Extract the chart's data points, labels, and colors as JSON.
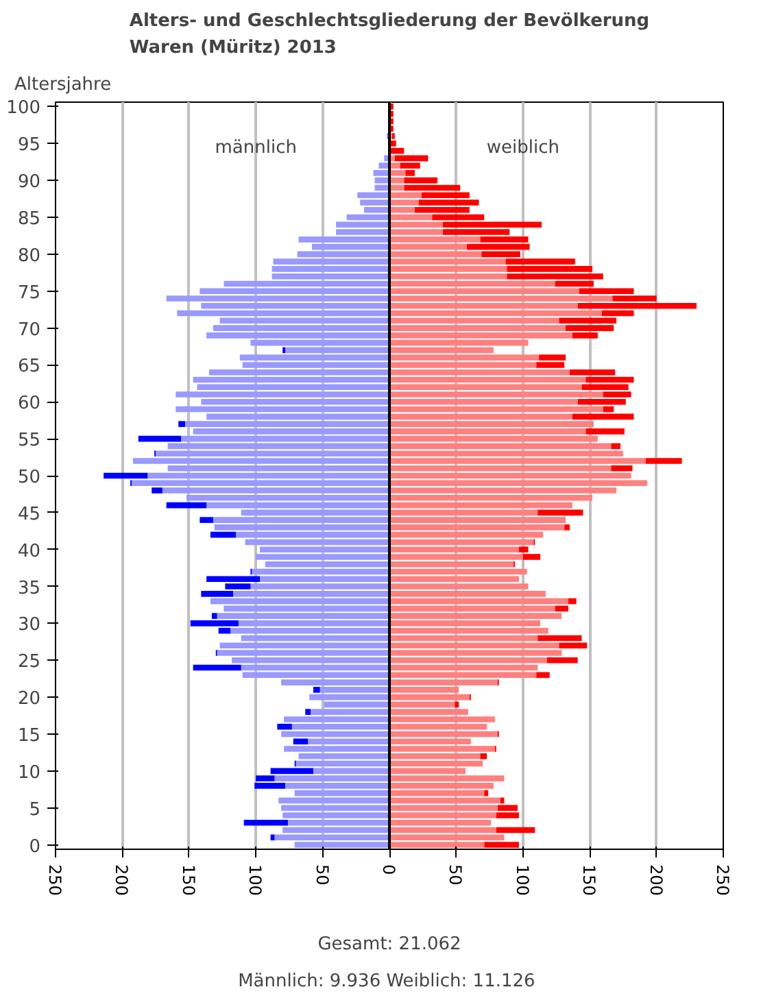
{
  "chart_data": {
    "type": "bar",
    "orientation": "horizontal",
    "stacked": true,
    "title": "Alters- und Geschlechtsgliederung der Bevölkerung\nWaren (Müritz) 2013",
    "ylabel": "Altersjahre",
    "categories": [
      "100",
      null,
      null,
      null,
      null,
      "95",
      null,
      null,
      null,
      null,
      "90",
      null,
      null,
      null,
      null,
      "85",
      null,
      null,
      null,
      null,
      "80",
      null,
      null,
      null,
      null,
      "75",
      null,
      null,
      null,
      null,
      "70",
      null,
      null,
      null,
      null,
      "65",
      null,
      null,
      null,
      null,
      "60",
      null,
      null,
      null,
      null,
      "55",
      null,
      null,
      null,
      null,
      "50",
      null,
      null,
      null,
      null,
      "45",
      null,
      null,
      null,
      null,
      "40",
      null,
      null,
      null,
      null,
      "35",
      null,
      null,
      null,
      null,
      "30",
      null,
      null,
      null,
      null,
      "25",
      null,
      null,
      null,
      null,
      "20",
      null,
      null,
      null,
      null,
      "15",
      null,
      null,
      null,
      null,
      "10",
      null,
      null,
      null,
      null,
      "5",
      null,
      null,
      null,
      null,
      "0"
    ],
    "series": [
      {
        "color": "#9999ff",
        "values": [
          null,
          null,
          null,
          null,
          -2,
          null,
          null,
          -4,
          -8,
          -12,
          -11,
          -11,
          -24,
          -22,
          -19,
          -32,
          -40,
          -40,
          -68,
          -58,
          -69,
          -87,
          -88,
          -88,
          -124,
          -142,
          -167,
          -141,
          -159,
          -127,
          -132,
          -137,
          -104,
          -78,
          -112,
          -110,
          -135,
          -147,
          -144,
          -160,
          -141,
          -160,
          -137,
          -153,
          -147,
          -156,
          -166,
          -175,
          -192,
          -166,
          -181,
          -193,
          -170,
          -152,
          -137,
          -111,
          -132,
          -131,
          -115,
          -108,
          -97,
          -100,
          -93,
          -103,
          -97,
          -104,
          -117,
          -134,
          -124,
          -129,
          -113,
          -119,
          -111,
          -127,
          -129,
          -118,
          -111,
          -110,
          -81,
          -52,
          -60,
          -49,
          -59,
          -79,
          -73,
          -81,
          -61,
          -79,
          -68,
          -70,
          -57,
          -86,
          -78,
          -71,
          -83,
          -81,
          -80,
          -76,
          -80,
          -86,
          -71
        ]
      },
      {
        "color": "#0000ff",
        "values": [
          null,
          null,
          null,
          null,
          null,
          null,
          null,
          null,
          null,
          null,
          null,
          null,
          null,
          null,
          null,
          null,
          null,
          null,
          null,
          null,
          null,
          null,
          null,
          null,
          null,
          null,
          null,
          null,
          null,
          null,
          null,
          null,
          null,
          -2,
          null,
          null,
          null,
          null,
          null,
          null,
          null,
          null,
          null,
          -5,
          null,
          -32,
          null,
          -1,
          null,
          null,
          -33,
          -1,
          -8,
          null,
          -30,
          null,
          -10,
          null,
          -19,
          null,
          null,
          null,
          null,
          -1,
          -40,
          -19,
          -24,
          null,
          null,
          -4,
          -36,
          -9,
          null,
          null,
          -1,
          null,
          -36,
          null,
          null,
          -5,
          null,
          null,
          -4,
          null,
          -11,
          null,
          -11,
          null,
          null,
          -1,
          -32,
          -14,
          -23,
          null,
          null,
          null,
          null,
          -33,
          null,
          -3,
          null
        ]
      },
      {
        "color": "#ff8080",
        "values": [
          null,
          null,
          null,
          null,
          2,
          null,
          null,
          4,
          8,
          12,
          11,
          11,
          24,
          22,
          19,
          32,
          40,
          40,
          68,
          58,
          69,
          87,
          88,
          88,
          124,
          142,
          167,
          141,
          159,
          127,
          132,
          137,
          104,
          78,
          112,
          110,
          135,
          147,
          144,
          160,
          141,
          160,
          137,
          153,
          147,
          156,
          166,
          175,
          192,
          166,
          181,
          193,
          170,
          152,
          137,
          111,
          132,
          131,
          115,
          108,
          97,
          100,
          93,
          103,
          97,
          104,
          117,
          134,
          124,
          129,
          113,
          119,
          111,
          127,
          129,
          118,
          111,
          110,
          81,
          52,
          60,
          49,
          59,
          79,
          73,
          81,
          61,
          79,
          68,
          70,
          57,
          86,
          78,
          71,
          83,
          81,
          80,
          76,
          80,
          86,
          71
        ]
      },
      {
        "color": "#ff0000",
        "values": [
          3,
          3,
          3,
          3,
          2,
          5,
          11,
          25,
          15,
          7,
          25,
          42,
          36,
          45,
          41,
          39,
          74,
          50,
          36,
          47,
          29,
          52,
          64,
          72,
          29,
          41,
          33,
          89,
          24,
          43,
          36,
          19,
          null,
          null,
          20,
          21,
          34,
          36,
          35,
          21,
          36,
          8,
          46,
          null,
          29,
          null,
          7,
          null,
          27,
          16,
          null,
          null,
          null,
          null,
          null,
          34,
          null,
          4,
          null,
          1,
          7,
          13,
          1,
          null,
          null,
          null,
          null,
          6,
          10,
          null,
          null,
          null,
          33,
          21,
          null,
          23,
          null,
          10,
          1,
          null,
          1,
          3,
          null,
          null,
          null,
          1,
          null,
          1,
          5,
          null,
          null,
          null,
          null,
          3,
          3,
          15,
          17,
          null,
          29,
          null,
          26
        ]
      }
    ],
    "xlim": [
      -250,
      250
    ],
    "xticks": [
      {
        "value": -250,
        "label": "250"
      },
      {
        "value": -200,
        "label": "200"
      },
      {
        "value": -150,
        "label": "150"
      },
      {
        "value": -100,
        "label": "100"
      },
      {
        "value": -50,
        "label": "50"
      },
      0,
      50,
      100,
      150,
      200,
      250
    ],
    "grid": "x",
    "ref_lines": [
      {
        "axis": "x",
        "value": 0,
        "color": "#000000"
      }
    ],
    "annotations": [
      "männlich",
      "weiblich",
      "Gesamt: 21.062",
      "Männlich: 9.936  Weiblich: 11.126"
    ]
  }
}
